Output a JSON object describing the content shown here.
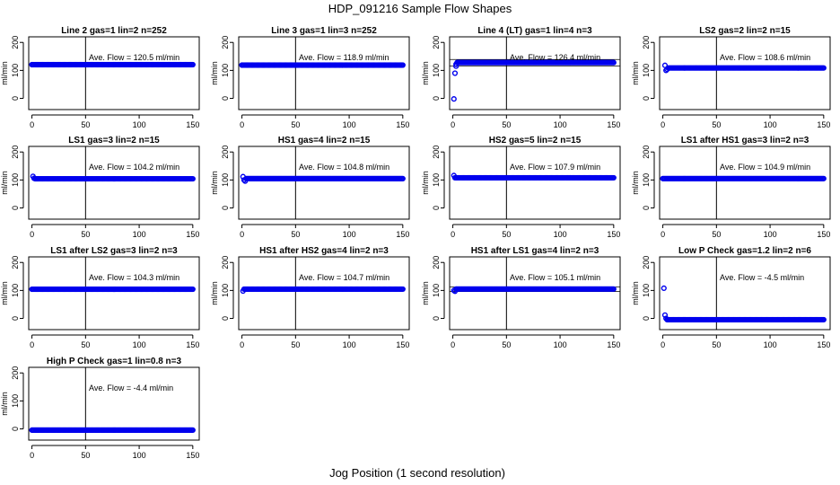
{
  "figure": {
    "title": "HDP_091216  Sample Flow Shapes",
    "xlabel": "Jog Position (1 second resolution)"
  },
  "chart_data": [
    {
      "type": "scatter",
      "title": "Line 2 gas=1 lin=2 n=252",
      "ylabel": "ml/min",
      "annotation": "Ave. Flow =  120.5  ml/min",
      "xticks": [
        0,
        50,
        100,
        150
      ],
      "yticks": [
        0,
        100,
        200
      ],
      "xlim": [
        -3,
        156
      ],
      "ylim": [
        -40,
        220
      ],
      "vline": 50,
      "hlines": [],
      "series": [
        {
          "start": 0,
          "end": 150,
          "value": 120.5,
          "color": "#0000ee"
        }
      ],
      "extra_points": []
    },
    {
      "type": "scatter",
      "title": "Line 3 gas=1 lin=3 n=252",
      "ylabel": "ml/min",
      "annotation": "Ave. Flow =  118.9  ml/min",
      "xticks": [
        0,
        50,
        100,
        150
      ],
      "yticks": [
        0,
        100,
        200
      ],
      "xlim": [
        -3,
        156
      ],
      "ylim": [
        -40,
        220
      ],
      "vline": 50,
      "hlines": [],
      "series": [
        {
          "start": 0,
          "end": 150,
          "value": 118.9,
          "color": "#0000ee"
        }
      ],
      "extra_points": []
    },
    {
      "type": "scatter",
      "title": "Line 4 (LT) gas=1 lin=4 n=3",
      "ylabel": "ml/min",
      "annotation": "Ave. Flow =  126.4  ml/min",
      "xticks": [
        0,
        50,
        100,
        150
      ],
      "yticks": [
        0,
        100,
        200
      ],
      "xlim": [
        -3,
        156
      ],
      "ylim": [
        -40,
        220
      ],
      "vline": 50,
      "hlines": [
        116,
        139
      ],
      "series": [
        {
          "start": 4,
          "end": 150,
          "value": 128,
          "color": "#0000ee"
        }
      ],
      "extra_points": [
        [
          1,
          -2
        ],
        [
          2,
          90
        ],
        [
          3,
          115
        ],
        [
          3,
          122
        ]
      ]
    },
    {
      "type": "scatter",
      "title": "LS2 gas=2 lin=2 n=15",
      "ylabel": "ml/min",
      "annotation": "Ave. Flow =  108.6  ml/min",
      "xticks": [
        0,
        50,
        100,
        150
      ],
      "yticks": [
        0,
        100,
        200
      ],
      "xlim": [
        -3,
        156
      ],
      "ylim": [
        -40,
        220
      ],
      "vline": 50,
      "hlines": [],
      "series": [
        {
          "start": 5,
          "end": 150,
          "value": 108.6,
          "color": "#0000ee"
        }
      ],
      "extra_points": [
        [
          2,
          118
        ],
        [
          3,
          100
        ],
        [
          4,
          104
        ]
      ]
    },
    {
      "type": "scatter",
      "title": "LS1 gas=3 lin=2 n=15",
      "ylabel": "ml/min",
      "annotation": "Ave. Flow =  104.2  ml/min",
      "xticks": [
        0,
        50,
        100,
        150
      ],
      "yticks": [
        0,
        100,
        200
      ],
      "xlim": [
        -3,
        156
      ],
      "ylim": [
        -40,
        220
      ],
      "vline": 50,
      "hlines": [],
      "series": [
        {
          "start": 3,
          "end": 150,
          "value": 104.2,
          "color": "#0000ee"
        }
      ],
      "extra_points": [
        [
          1,
          113
        ],
        [
          2,
          106
        ]
      ]
    },
    {
      "type": "scatter",
      "title": "HS1 gas=4 lin=2 n=15",
      "ylabel": "ml/min",
      "annotation": "Ave. Flow =  104.8  ml/min",
      "xticks": [
        0,
        50,
        100,
        150
      ],
      "yticks": [
        0,
        100,
        200
      ],
      "xlim": [
        -3,
        156
      ],
      "ylim": [
        -40,
        220
      ],
      "vline": 50,
      "hlines": [],
      "series": [
        {
          "start": 4,
          "end": 150,
          "value": 104.8,
          "color": "#0000ee"
        }
      ],
      "extra_points": [
        [
          1,
          112
        ],
        [
          2,
          100
        ],
        [
          3,
          96
        ]
      ]
    },
    {
      "type": "scatter",
      "title": "HS2 gas=5 lin=2 n=15",
      "ylabel": "ml/min",
      "annotation": "Ave. Flow =  107.9  ml/min",
      "xticks": [
        0,
        50,
        100,
        150
      ],
      "yticks": [
        0,
        100,
        200
      ],
      "xlim": [
        -3,
        156
      ],
      "ylim": [
        -40,
        220
      ],
      "vline": 50,
      "hlines": [],
      "series": [
        {
          "start": 3,
          "end": 150,
          "value": 107.9,
          "color": "#0000ee"
        }
      ],
      "extra_points": [
        [
          1,
          116
        ],
        [
          2,
          108
        ]
      ]
    },
    {
      "type": "scatter",
      "title": "LS1 after HS1 gas=3 lin=2 n=3",
      "ylabel": "ml/min",
      "annotation": "Ave. Flow =  104.9  ml/min",
      "xticks": [
        0,
        50,
        100,
        150
      ],
      "yticks": [
        0,
        100,
        200
      ],
      "xlim": [
        -3,
        156
      ],
      "ylim": [
        -40,
        220
      ],
      "vline": 50,
      "hlines": [],
      "series": [
        {
          "start": 0,
          "end": 150,
          "value": 104.9,
          "color": "#0000ee"
        }
      ],
      "extra_points": []
    },
    {
      "type": "scatter",
      "title": "LS1 after LS2 gas=3 lin=2 n=3",
      "ylabel": "ml/min",
      "annotation": "Ave. Flow =  104.3  ml/min",
      "xticks": [
        0,
        50,
        100,
        150
      ],
      "yticks": [
        0,
        100,
        200
      ],
      "xlim": [
        -3,
        156
      ],
      "ylim": [
        -40,
        220
      ],
      "vline": 50,
      "hlines": [],
      "series": [
        {
          "start": 0,
          "end": 150,
          "value": 104.3,
          "color": "#0000ee"
        }
      ],
      "extra_points": []
    },
    {
      "type": "scatter",
      "title": "HS1 after HS2 gas=4 lin=2 n=3",
      "ylabel": "ml/min",
      "annotation": "Ave. Flow =  104.7  ml/min",
      "xticks": [
        0,
        50,
        100,
        150
      ],
      "yticks": [
        0,
        100,
        200
      ],
      "xlim": [
        -3,
        156
      ],
      "ylim": [
        -40,
        220
      ],
      "vline": 50,
      "hlines": [],
      "series": [
        {
          "start": 2,
          "end": 150,
          "value": 104.7,
          "color": "#0000ee"
        }
      ],
      "extra_points": [
        [
          1,
          98
        ]
      ]
    },
    {
      "type": "scatter",
      "title": "HS1 after LS1 gas=4 lin=2 n=3",
      "ylabel": "ml/min",
      "annotation": "Ave. Flow =  105.1  ml/min",
      "xticks": [
        0,
        50,
        100,
        150
      ],
      "yticks": [
        0,
        100,
        200
      ],
      "xlim": [
        -3,
        156
      ],
      "ylim": [
        -40,
        220
      ],
      "vline": 50,
      "hlines": [
        96,
        112
      ],
      "series": [
        {
          "start": 3,
          "end": 150,
          "value": 105.1,
          "color": "#0000ee"
        }
      ],
      "extra_points": [
        [
          1,
          100
        ],
        [
          2,
          97
        ]
      ]
    },
    {
      "type": "scatter",
      "title": "Low P Check gas=1.2 lin=2 n=6",
      "ylabel": "ml/min",
      "annotation": "Ave. Flow =  -4.5  ml/min",
      "xticks": [
        0,
        50,
        100,
        150
      ],
      "yticks": [
        0,
        100,
        200
      ],
      "xlim": [
        -3,
        156
      ],
      "ylim": [
        -40,
        220
      ],
      "vline": 50,
      "hlines": [],
      "series": [
        {
          "start": 4,
          "end": 150,
          "value": -4.5,
          "color": "#0000ee"
        }
      ],
      "extra_points": [
        [
          1,
          108
        ],
        [
          2,
          12
        ],
        [
          3,
          0
        ]
      ]
    },
    {
      "type": "scatter",
      "title": "High P Check gas=1 lin=0.8 n=3",
      "ylabel": "ml/min",
      "annotation": "Ave. Flow =  -4.4  ml/min",
      "xticks": [
        0,
        50,
        100,
        150
      ],
      "yticks": [
        0,
        100,
        200
      ],
      "xlim": [
        -3,
        156
      ],
      "ylim": [
        -40,
        220
      ],
      "vline": 50,
      "hlines": [],
      "series": [
        {
          "start": 0,
          "end": 150,
          "value": -4.4,
          "color": "#0000ee"
        }
      ],
      "extra_points": []
    }
  ]
}
